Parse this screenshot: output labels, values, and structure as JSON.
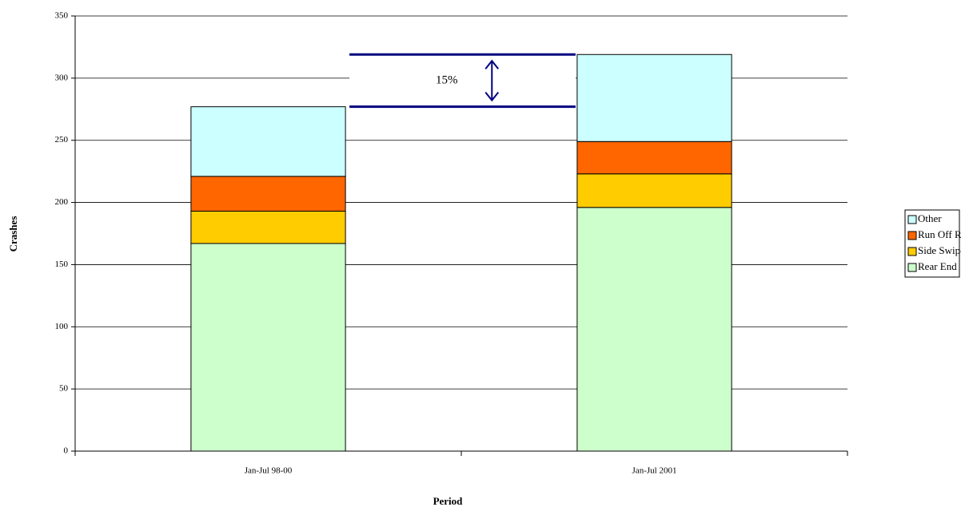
{
  "chart_data": {
    "type": "stacked-bar",
    "categories": [
      "Jan-Jul 98-00",
      "Jan-Jul 2001"
    ],
    "series": [
      {
        "name": "Rear End",
        "color": "#ccffcc",
        "values": [
          167,
          196
        ]
      },
      {
        "name": "Side Swipe",
        "color": "#ffcc00",
        "values": [
          26,
          27
        ]
      },
      {
        "name": "Run Off Road",
        "color": "#ff6600",
        "values": [
          28,
          26
        ]
      },
      {
        "name": "Other",
        "color": "#ccffff",
        "values": [
          56,
          70
        ]
      }
    ],
    "ylim": [
      0,
      350
    ],
    "yticks": [
      0,
      50,
      100,
      150,
      200,
      250,
      300,
      350
    ],
    "grid": true,
    "legend": "right",
    "xlabel": "Period",
    "ylabel": "Crashes",
    "annotation": "15%"
  }
}
